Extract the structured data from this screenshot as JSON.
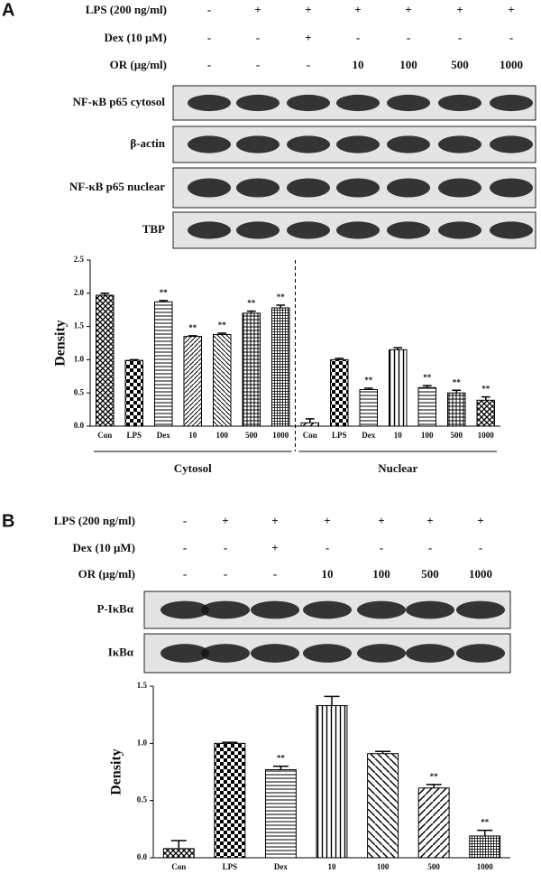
{
  "panel_a": {
    "label": "A",
    "treatments": [
      {
        "label": "LPS (200 ng/ml)",
        "values": [
          "-",
          "+",
          "+",
          "+",
          "+",
          "+",
          "+"
        ]
      },
      {
        "label": "Dex (10 μM)",
        "values": [
          "-",
          "-",
          "+",
          "-",
          "-",
          "-",
          "-"
        ]
      },
      {
        "label": "OR (μg/ml)",
        "values": [
          "-",
          "-",
          "-",
          "10",
          "100",
          "500",
          "1000"
        ]
      }
    ],
    "blots": [
      "NF-κB p65 cytosol",
      "β-actin",
      "NF-κB p65 nuclear",
      "TBP"
    ]
  },
  "panel_b": {
    "label": "B",
    "treatments": [
      {
        "label": "LPS (200 ng/ml)",
        "values": [
          "-",
          "+",
          "+",
          "+",
          "+",
          "+",
          "+"
        ]
      },
      {
        "label": "Dex (10 μM)",
        "values": [
          "-",
          "-",
          "+",
          "-",
          "-",
          "-",
          "-"
        ]
      },
      {
        "label": "OR (μg/ml)",
        "values": [
          "-",
          "-",
          "-",
          "10",
          "100",
          "500",
          "1000"
        ]
      }
    ],
    "blots": [
      "P-IκBα",
      "IκBα"
    ]
  },
  "chart_data": [
    {
      "type": "bar",
      "y_label": "Density",
      "categories": [
        "Con",
        "LPS",
        "Dex",
        "10",
        "100",
        "500",
        "1000",
        "Con",
        "LPS",
        "Dex",
        "10",
        "100",
        "500",
        "1000"
      ],
      "values": [
        1.97,
        0.99,
        1.87,
        1.35,
        1.38,
        1.7,
        1.78,
        0.05,
        1.0,
        0.55,
        1.15,
        0.58,
        0.5,
        0.39
      ],
      "errors": [
        0.03,
        0.01,
        0.02,
        0.01,
        0.02,
        0.03,
        0.04,
        0.06,
        0.02,
        0.02,
        0.03,
        0.03,
        0.04,
        0.05
      ],
      "significance": [
        null,
        null,
        "**",
        "**",
        "**",
        "**",
        "**",
        null,
        null,
        "**",
        null,
        "**",
        "**",
        "**"
      ],
      "groups": [
        "Cytosol",
        "Nuclear"
      ],
      "ylim": [
        0,
        2.5
      ],
      "yticks": [
        {
          "value": 0,
          "label": "0.0"
        },
        0.5,
        {
          "value": 1,
          "label": "1.0"
        },
        1.5,
        {
          "value": 2,
          "label": "2.0"
        },
        2.5
      ]
    },
    {
      "type": "bar",
      "y_label": "Density",
      "categories": [
        "Con",
        "LPS",
        "Dex",
        "10",
        "100",
        "500",
        "1000"
      ],
      "values": [
        0.08,
        1.0,
        0.77,
        1.33,
        0.91,
        0.61,
        0.19
      ],
      "errors": [
        0.07,
        0.01,
        0.03,
        0.08,
        0.02,
        0.03,
        0.05
      ],
      "significance": [
        null,
        null,
        "**",
        null,
        null,
        "**",
        "**"
      ],
      "ylim": [
        0,
        1.5
      ],
      "yticks": [
        {
          "value": 0,
          "label": "0.0"
        },
        0.5,
        {
          "value": 1,
          "label": "1.0"
        },
        1.5
      ]
    }
  ]
}
